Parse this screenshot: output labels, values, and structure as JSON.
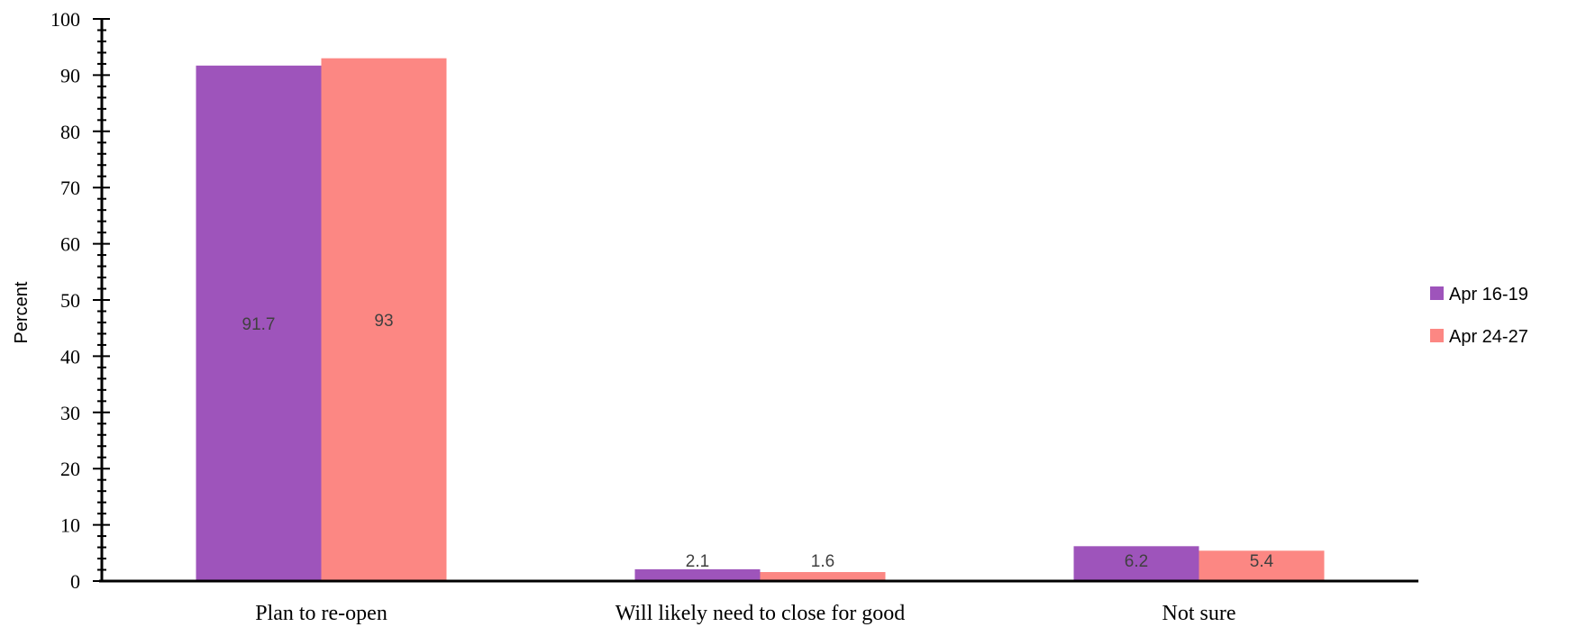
{
  "chart_data": {
    "type": "bar",
    "categories": [
      "Plan to re-open",
      "Will likely need to close for good",
      "Not sure"
    ],
    "series": [
      {
        "name": "Apr 16-19",
        "values": [
          91.7,
          2.1,
          6.2
        ],
        "color": "#9e54bb"
      },
      {
        "name": "Apr 24-27",
        "values": [
          93,
          1.6,
          5.4
        ],
        "color": "#fc8783"
      }
    ],
    "data_labels": [
      [
        "91.7",
        "2.1",
        "6.2"
      ],
      [
        "93",
        "1.6",
        "5.4"
      ]
    ],
    "title": "",
    "xlabel": "",
    "ylabel": "Percent",
    "ylim": [
      0,
      100
    ],
    "y_ticks": [
      "0",
      "10",
      "20",
      "30",
      "40",
      "50",
      "60",
      "70",
      "80",
      "90",
      "100"
    ],
    "grid": false,
    "legend_position": "right"
  }
}
